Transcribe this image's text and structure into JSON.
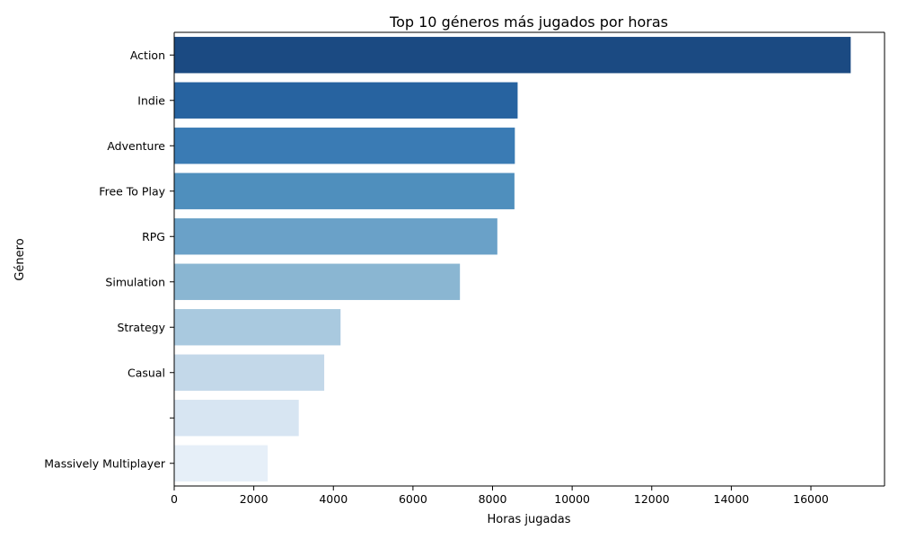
{
  "chart_data": {
    "type": "bar",
    "orientation": "horizontal",
    "title": "Top 10 géneros más jugados por horas",
    "xlabel": "Horas jugadas",
    "ylabel": "Género",
    "categories": [
      "Action",
      "Indie",
      "Adventure",
      "Free To Play",
      "RPG",
      "Simulation",
      "Strategy",
      "Casual",
      "",
      "Massively Multiplayer"
    ],
    "values": [
      17000,
      8630,
      8560,
      8550,
      8120,
      7180,
      4180,
      3770,
      3130,
      2350
    ],
    "xlim": [
      0,
      17850
    ],
    "xticks": [
      0,
      2000,
      4000,
      6000,
      8000,
      10000,
      12000,
      14000,
      16000
    ],
    "grid": false,
    "palette": "Blues (reversed)",
    "colors": [
      "#1b4a82",
      "#2763a0",
      "#3a7bb4",
      "#4f8fbd",
      "#6aa1c8",
      "#8ab6d2",
      "#a9c9df",
      "#c3d8e9",
      "#d7e5f2",
      "#e6eff8"
    ]
  }
}
